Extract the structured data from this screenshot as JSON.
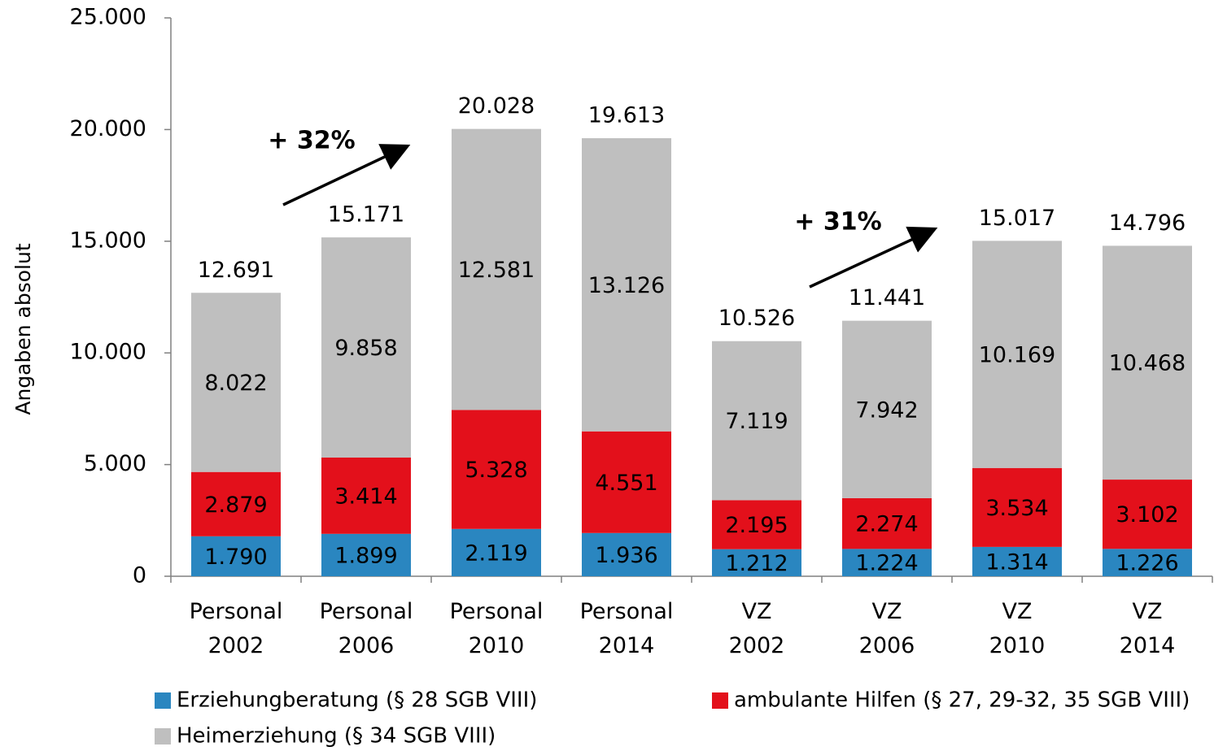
{
  "chart_data": {
    "type": "stacked_bar",
    "y_label": "Angaben absolut",
    "categories": [
      "Personal 2002",
      "Personal 2006",
      "Personal 2010",
      "Personal 2014",
      "VZ 2002",
      "VZ 2006",
      "VZ 2010",
      "VZ 2014"
    ],
    "series": [
      {
        "name": "Erziehungberatung (§ 28 SGB VIII)",
        "color": "#2a86c0",
        "values": [
          1790,
          1899,
          2119,
          1936,
          1212,
          1224,
          1314,
          1226
        ],
        "value_labels": [
          "1.790",
          "1.899",
          "2.119",
          "1.936",
          "1.212",
          "1.224",
          "1.314",
          "1.226"
        ]
      },
      {
        "name": "ambulante Hilfen (§ 27, 29-32, 35 SGB VIII)",
        "color": "#e3101b",
        "values": [
          2879,
          3414,
          5328,
          4551,
          2195,
          2274,
          3534,
          3102
        ],
        "value_labels": [
          "2.879",
          "3.414",
          "5.328",
          "4.551",
          "2.195",
          "2.274",
          "3.534",
          "3.102"
        ]
      },
      {
        "name": "Heimerziehung (§ 34 SGB VIII)",
        "color": "#bfbfbf",
        "values": [
          8022,
          9858,
          12581,
          13126,
          7119,
          7942,
          10169,
          10468
        ],
        "value_labels": [
          "8.022",
          "9.858",
          "12.581",
          "13.126",
          "7.119",
          "7.942",
          "10.169",
          "10.468"
        ]
      }
    ],
    "totals": {
      "values": [
        12691,
        15171,
        20028,
        19613,
        10526,
        11441,
        15017,
        14796
      ],
      "value_labels": [
        "12.691",
        "15.171",
        "20.028",
        "19.613",
        "10.526",
        "11.441",
        "15.017",
        "14.796"
      ]
    },
    "annotations": [
      "+ 32%",
      "+ 31%"
    ],
    "ylim": [
      0,
      25000
    ],
    "yticks": [
      0,
      {
        "value": 5000,
        "label": "5.000"
      },
      {
        "value": 10000,
        "label": "10.000"
      },
      {
        "value": 15000,
        "label": "15.000"
      },
      {
        "value": 20000,
        "label": "20.000"
      },
      {
        "value": 25000,
        "label": "25.000"
      }
    ]
  }
}
